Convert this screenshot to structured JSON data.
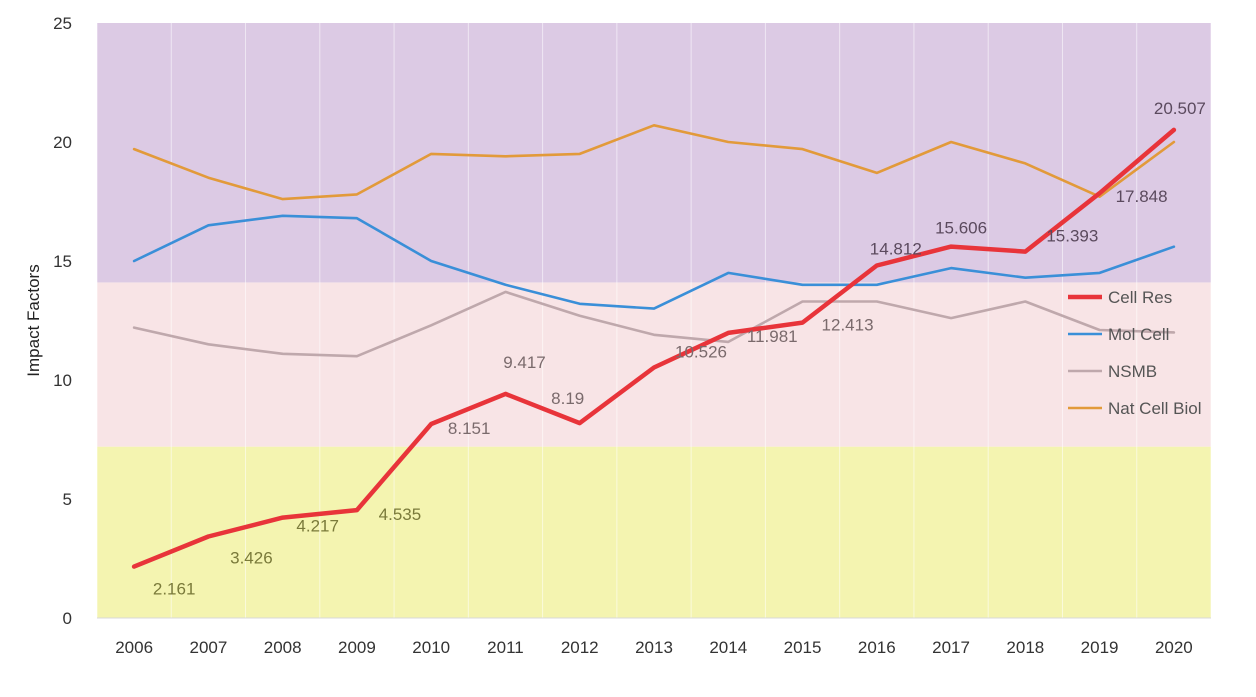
{
  "chart_data": {
    "type": "line",
    "title": "",
    "xlabel": "",
    "ylabel": "Impact Factors",
    "x": [
      "2006",
      "2007",
      "2008",
      "2009",
      "2010",
      "2011",
      "2012",
      "2013",
      "2014",
      "2015",
      "2016",
      "2017",
      "2018",
      "2019",
      "2020"
    ],
    "ylim": [
      0,
      25
    ],
    "yticks": [
      0,
      5,
      10,
      15,
      20,
      25
    ],
    "grid": "vertical",
    "legend": "right",
    "background_bands": [
      {
        "from": 0,
        "to": 7.2,
        "color": "#f4f4b0"
      },
      {
        "from": 7.2,
        "to": 14.1,
        "color": "#f8e4e6"
      },
      {
        "from": 14.1,
        "to": 25,
        "color": "#dccae4"
      }
    ],
    "series": [
      {
        "name": "Cell Res",
        "color": "#e8343a",
        "values": [
          2.161,
          3.426,
          4.217,
          4.535,
          8.151,
          9.417,
          8.19,
          10.526,
          11.981,
          12.413,
          14.812,
          15.606,
          15.393,
          17.848,
          20.507
        ],
        "labels": [
          "2.161",
          "3.426",
          "4.217",
          "4.535",
          "8.151",
          "9.417",
          "8.19",
          "10.526",
          "11.981",
          "12.413",
          "14.812",
          "15.606",
          "15.393",
          "17.848",
          "20.507"
        ]
      },
      {
        "name": "Mol Cell",
        "color": "#3a8fd8",
        "values": [
          15.0,
          16.5,
          16.9,
          16.8,
          15.0,
          14.0,
          13.2,
          13.0,
          14.5,
          14.0,
          14.0,
          14.7,
          14.3,
          14.5,
          15.6
        ]
      },
      {
        "name": "NSMB",
        "color": "#bfa8ac",
        "values": [
          12.2,
          11.5,
          11.1,
          11.0,
          12.3,
          13.7,
          12.7,
          11.9,
          11.6,
          13.3,
          13.3,
          12.6,
          13.3,
          12.1,
          12.0
        ]
      },
      {
        "name": "Nat Cell Biol",
        "color": "#e29a3a",
        "values": [
          19.7,
          18.5,
          17.6,
          17.8,
          19.5,
          19.4,
          19.5,
          20.7,
          20.0,
          19.7,
          18.7,
          20.0,
          19.1,
          17.7,
          20.0
        ]
      }
    ]
  }
}
